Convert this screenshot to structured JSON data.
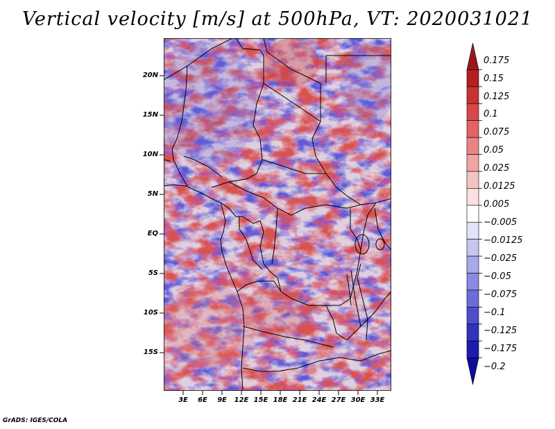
{
  "title": "Vertical velocity [m/s] at 500hPa, VT: 2020031021",
  "map": {
    "type": "filled-contour",
    "variable": "Vertical velocity",
    "units": "m/s",
    "level": "500hPa",
    "valid_time": "2020031021",
    "lat_labels": [
      "20N",
      "15N",
      "10N",
      "5N",
      "EQ",
      "5S",
      "10S",
      "15S"
    ],
    "lat_values": [
      20,
      15,
      10,
      5,
      0,
      -5,
      -10,
      -15
    ],
    "lon_labels": [
      "3E",
      "6E",
      "9E",
      "12E",
      "15E",
      "18E",
      "21E",
      "24E",
      "27E",
      "30E",
      "33E"
    ],
    "lon_values": [
      3,
      6,
      9,
      12,
      15,
      18,
      21,
      24,
      27,
      30,
      33
    ]
  },
  "colorbar": {
    "labels": [
      "0.175",
      "0.15",
      "0.125",
      "0.1",
      "0.075",
      "0.05",
      "0.025",
      "0.0125",
      "0.005",
      "−0.005",
      "−0.0125",
      "−0.025",
      "−0.05",
      "−0.075",
      "−0.1",
      "−0.125",
      "−0.175",
      "−0.2"
    ],
    "colors": [
      "#9b1818",
      "#b42020",
      "#c93232",
      "#d84848",
      "#e26464",
      "#ea8484",
      "#f1a4a4",
      "#f6c3c3",
      "#fae0e0",
      "#ffffff",
      "#e2e2fa",
      "#c6c6f2",
      "#a8a8ea",
      "#8a8ae2",
      "#6c6cd8",
      "#4e4ecc",
      "#3232bc",
      "#1c1cb0",
      "#0e0e9c"
    ]
  },
  "footer": "GrADS: IGES/COLA"
}
